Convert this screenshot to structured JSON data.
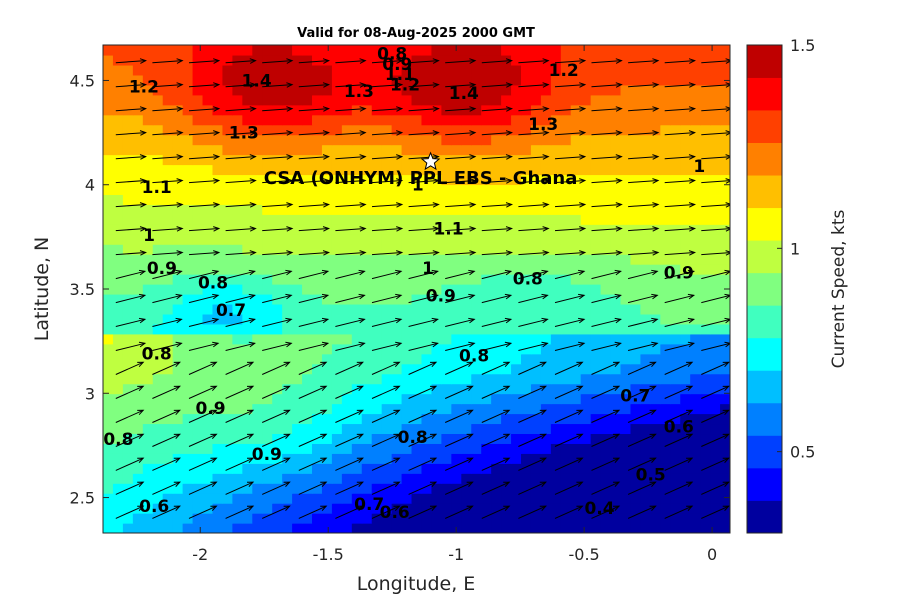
{
  "chart_data": {
    "type": "heatmap",
    "title": "Valid for 08-Aug-2025 2000 GMT",
    "xlabel": "Longitude, E",
    "ylabel": "Latitude, N",
    "colorbar_label": "Current Speed, kts",
    "xlim": [
      -2.38,
      0.07
    ],
    "ylim": [
      2.33,
      4.67
    ],
    "x_ticks": [
      -2,
      -1.5,
      -1,
      -0.5,
      0
    ],
    "x_tick_labels": [
      "-2",
      "-1.5",
      "-1",
      "-0.5",
      "0"
    ],
    "y_ticks": [
      2.5,
      3,
      3.5,
      4,
      4.5
    ],
    "y_tick_labels": [
      "2.5",
      "3",
      "3.5",
      "4",
      "4.5"
    ],
    "colorbar": {
      "range": [
        0.3,
        1.5
      ],
      "ticks": [
        0.5,
        1,
        1.5
      ],
      "tick_labels": [
        "0.5",
        "1",
        "1.5"
      ],
      "colors": [
        "#00009f",
        "#0000ff",
        "#0040ff",
        "#0080ff",
        "#00bfff",
        "#00ffff",
        "#40ffbf",
        "#80ff80",
        "#bfff40",
        "#ffff00",
        "#ffbf00",
        "#ff8000",
        "#ff4000",
        "#ff0000",
        "#bf0000"
      ]
    },
    "site": {
      "label": "CSA (ONHYM) PPL EBS - Ghana",
      "lon": -1.1,
      "lat": 4.11
    },
    "grid": false,
    "contour_labels": [
      {
        "text": "0.8",
        "lon": -1.25,
        "lat": 4.63
      },
      {
        "text": "0.9",
        "lon": -1.23,
        "lat": 4.58
      },
      {
        "text": "1.1",
        "lon": -1.22,
        "lat": 4.53
      },
      {
        "text": "1.2",
        "lon": -1.2,
        "lat": 4.48
      },
      {
        "text": "1.3",
        "lon": -1.38,
        "lat": 4.45
      },
      {
        "text": "1.4",
        "lon": -1.78,
        "lat": 4.5
      },
      {
        "text": "1.4",
        "lon": -0.97,
        "lat": 4.44
      },
      {
        "text": "1.2",
        "lon": -2.22,
        "lat": 4.47
      },
      {
        "text": "1.2",
        "lon": -0.58,
        "lat": 4.55
      },
      {
        "text": "1.3",
        "lon": -1.83,
        "lat": 4.25
      },
      {
        "text": "1.3",
        "lon": -0.66,
        "lat": 4.29
      },
      {
        "text": "1.1",
        "lon": -2.17,
        "lat": 3.99
      },
      {
        "text": "1",
        "lon": -1.15,
        "lat": 4.0
      },
      {
        "text": "1.1",
        "lon": -1.03,
        "lat": 3.79
      },
      {
        "text": "1",
        "lon": -0.05,
        "lat": 4.09
      },
      {
        "text": "1",
        "lon": -2.2,
        "lat": 3.76
      },
      {
        "text": "0.9",
        "lon": -2.15,
        "lat": 3.6
      },
      {
        "text": "0.8",
        "lon": -1.95,
        "lat": 3.53
      },
      {
        "text": "1",
        "lon": -1.11,
        "lat": 3.6
      },
      {
        "text": "0.9",
        "lon": -1.06,
        "lat": 3.47
      },
      {
        "text": "0.8",
        "lon": -0.72,
        "lat": 3.55
      },
      {
        "text": "0.9",
        "lon": -0.13,
        "lat": 3.58
      },
      {
        "text": "0.7",
        "lon": -1.88,
        "lat": 3.4
      },
      {
        "text": "0.8",
        "lon": -2.17,
        "lat": 3.19
      },
      {
        "text": "0.8",
        "lon": -0.93,
        "lat": 3.18
      },
      {
        "text": "0.9",
        "lon": -1.96,
        "lat": 2.93
      },
      {
        "text": "0.8",
        "lon": -2.32,
        "lat": 2.78
      },
      {
        "text": "0.9",
        "lon": -1.74,
        "lat": 2.71
      },
      {
        "text": "0.8",
        "lon": -1.17,
        "lat": 2.79
      },
      {
        "text": "0.7",
        "lon": -0.3,
        "lat": 2.99
      },
      {
        "text": "0.6",
        "lon": -0.13,
        "lat": 2.84
      },
      {
        "text": "0.5",
        "lon": -0.24,
        "lat": 2.61
      },
      {
        "text": "0.6",
        "lon": -2.18,
        "lat": 2.46
      },
      {
        "text": "0.7",
        "lon": -1.34,
        "lat": 2.47
      },
      {
        "text": "0.6",
        "lon": -1.24,
        "lat": 2.43
      },
      {
        "text": "0.4",
        "lon": -0.44,
        "lat": 2.45
      }
    ]
  }
}
